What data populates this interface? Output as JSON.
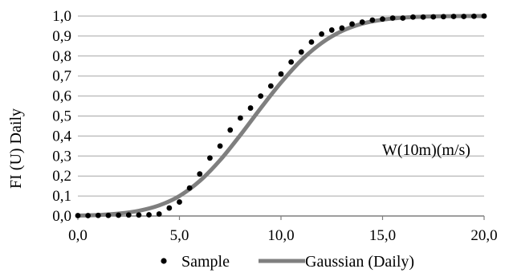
{
  "chart_data": {
    "type": "line",
    "title": "",
    "xlabel": "",
    "ylabel": "FI (U) Daily",
    "annotation": "W(10m)(m/s)",
    "xlim": [
      0,
      20
    ],
    "ylim": [
      0,
      1
    ],
    "x_ticks": [
      "0,0",
      "5,0",
      "10,0",
      "15,0",
      "20,0"
    ],
    "y_ticks": [
      "0,0",
      "0,1",
      "0,2",
      "0,3",
      "0,4",
      "0,5",
      "0,6",
      "0,7",
      "0,8",
      "0,9",
      "1,0"
    ],
    "grid": true,
    "legend_position": "bottom",
    "series": [
      {
        "name": "Sample",
        "kind": "scatter",
        "color": "#000000",
        "x": [
          0.0,
          0.5,
          1.0,
          1.5,
          2.0,
          2.5,
          3.0,
          3.5,
          4.0,
          4.5,
          5.0,
          5.5,
          6.0,
          6.5,
          7.0,
          7.5,
          8.0,
          8.5,
          9.0,
          9.5,
          10.0,
          10.5,
          11.0,
          11.5,
          12.0,
          12.5,
          13.0,
          13.5,
          14.0,
          14.5,
          15.0,
          15.5,
          16.0,
          16.5,
          17.0,
          17.5,
          18.0,
          18.5,
          19.0,
          19.5,
          20.0
        ],
        "y": [
          0.002,
          0.002,
          0.003,
          0.003,
          0.004,
          0.005,
          0.005,
          0.006,
          0.01,
          0.04,
          0.07,
          0.14,
          0.21,
          0.29,
          0.35,
          0.43,
          0.49,
          0.54,
          0.6,
          0.65,
          0.71,
          0.77,
          0.82,
          0.87,
          0.91,
          0.93,
          0.94,
          0.96,
          0.97,
          0.98,
          0.985,
          0.99,
          0.99,
          0.995,
          0.995,
          0.996,
          0.997,
          0.998,
          0.998,
          0.999,
          1.0
        ]
      },
      {
        "name": "Gaussian (Daily)",
        "kind": "line",
        "color": "#7f7f7f",
        "x": [
          0,
          1,
          2,
          3,
          4,
          5,
          6,
          7,
          8,
          9,
          10,
          11,
          12,
          13,
          14,
          15,
          16,
          17,
          18,
          19,
          20
        ],
        "y": [
          0.002,
          0.005,
          0.012,
          0.026,
          0.053,
          0.1,
          0.175,
          0.279,
          0.405,
          0.539,
          0.667,
          0.779,
          0.865,
          0.925,
          0.962,
          0.982,
          0.992,
          0.997,
          0.999,
          1.0,
          1.0
        ]
      }
    ]
  }
}
